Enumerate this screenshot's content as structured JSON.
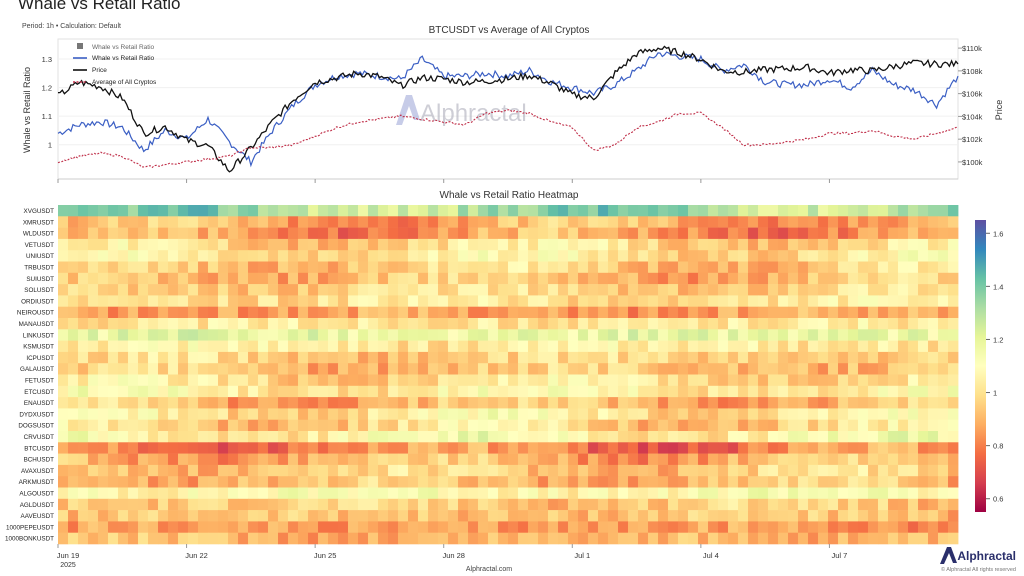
{
  "page": {
    "title": "Whale vs Retail Ratio",
    "subtitle": "Period: 1h • Calculation: Default",
    "watermark": "Alphractal",
    "footer_site": "Alphractal.com",
    "footer_brand": "Alphractal",
    "footer_rights": "© Alphractal All rights reserved"
  },
  "colors": {
    "whale": "#3b5fc4",
    "price": "#111111",
    "average": "#c0304a",
    "legend_box": "#777777"
  },
  "chart_data": [
    {
      "type": "line",
      "title": "BTCUSDT vs Average of All Cryptos",
      "ylabel": "Whale vs Retail Ratio",
      "y2label": "Price",
      "ylim": [
        0.88,
        1.37
      ],
      "y2lim": [
        98500,
        110800
      ],
      "yticks": [
        "1",
        "1.1",
        "1.2",
        "1.3"
      ],
      "y2ticks": [
        "$100k",
        "$102k",
        "$104k",
        "$106k",
        "$108k",
        "$110k"
      ],
      "legend": {
        "position": "top-left",
        "entries": [
          "Whale vs Retail Ratio",
          "Whale vs Retail Ratio",
          "Price",
          "Average of All Cryptos"
        ]
      },
      "x": [
        0,
        0.5,
        1,
        1.5,
        2,
        2.5,
        3,
        3.5,
        4,
        4.5,
        5,
        5.5,
        6,
        6.5,
        7,
        7.5,
        8,
        8.5,
        9,
        9.5,
        10,
        10.5,
        11,
        11.5,
        12,
        12.5,
        13,
        13.5,
        14,
        14.5,
        15,
        15.5,
        16,
        16.5,
        17,
        17.5,
        18,
        18.5,
        19,
        19.5,
        20,
        20.5,
        21
      ],
      "series": [
        {
          "name": "Whale vs Retail Ratio",
          "axis": "left",
          "values": [
            1.04,
            1.07,
            1.08,
            1.06,
            0.98,
            1.05,
            1.02,
            1.09,
            1.01,
            0.94,
            1.05,
            1.14,
            1.21,
            1.24,
            1.25,
            1.24,
            1.23,
            1.3,
            1.24,
            1.24,
            1.25,
            1.24,
            1.26,
            1.22,
            1.2,
            1.18,
            1.21,
            1.26,
            1.32,
            1.31,
            1.3,
            1.26,
            1.28,
            1.22,
            1.21,
            1.21,
            1.23,
            1.2,
            1.26,
            1.21,
            1.19,
            1.14,
            1.24
          ]
        },
        {
          "name": "Price",
          "axis": "right",
          "values": [
            105800,
            107000,
            106600,
            105600,
            102500,
            103100,
            101900,
            101400,
            99200,
            101200,
            103500,
            105500,
            107000,
            107400,
            107800,
            107500,
            106700,
            107400,
            107300,
            107000,
            107100,
            107300,
            107600,
            106900,
            105900,
            105600,
            107800,
            109500,
            110000,
            109600,
            109000,
            108000,
            107900,
            108100,
            108200,
            108300,
            107800,
            108100,
            108000,
            108400,
            108700,
            108600,
            108600
          ]
        },
        {
          "name": "Average of All Cryptos",
          "axis": "left",
          "values": [
            0.94,
            0.96,
            0.97,
            0.96,
            0.92,
            0.93,
            0.94,
            0.95,
            0.96,
            0.99,
            0.99,
            1.0,
            1.03,
            1.06,
            1.08,
            1.09,
            1.1,
            1.09,
            1.08,
            1.07,
            1.11,
            1.12,
            1.11,
            1.08,
            1.06,
            0.98,
            1.0,
            1.06,
            1.08,
            1.11,
            1.11,
            1.06,
            1.0,
            1.0,
            1.01,
            1.02,
            1.04,
            1.04,
            1.05,
            1.03,
            1.02,
            1.04,
            1.06
          ]
        }
      ]
    },
    {
      "type": "heatmap",
      "title": "Whale vs Retail Ratio Heatmap",
      "rows": [
        "XVGUSDT",
        "XMRUSDT",
        "WLDUSDT",
        "VETUSDT",
        "UNIUSDT",
        "TRBUSDT",
        "SUIUSDT",
        "SOLUSDT",
        "ORDIUSDT",
        "NEIROUSDT",
        "MANAUSDT",
        "LINKUSDT",
        "KSMUSDT",
        "ICPUSDT",
        "GALAUSDT",
        "FETUSDT",
        "ETCUSDT",
        "ENAUSDT",
        "DYDXUSDT",
        "DOGSUSDT",
        "CRVUSDT",
        "BTCUSDT",
        "BCHUSDT",
        "AVAXUSDT",
        "ARKMUSDT",
        "ALGOUSDT",
        "AGLDUSDT",
        "AAVEUSDT",
        "1000PEPEUSDT",
        "1000BONKUSDT"
      ],
      "row_means": [
        1.32,
        0.88,
        0.85,
        0.98,
        1.02,
        0.95,
        0.92,
        0.97,
        1.0,
        0.86,
        1.02,
        1.18,
        1.03,
        0.96,
        0.93,
        1.0,
        1.05,
        0.9,
        1.03,
        0.97,
        1.08,
        0.8,
        0.9,
        0.94,
        0.92,
        1.1,
        0.95,
        0.93,
        0.85,
        0.9
      ],
      "colorbar": {
        "range": [
          0.55,
          1.65
        ],
        "ticks": [
          "0.6",
          "0.8",
          "1",
          "1.2",
          "1.4",
          "1.6"
        ],
        "colors": [
          "#9e0142",
          "#d53e4f",
          "#f46d43",
          "#fdae61",
          "#fee08b",
          "#ffffbf",
          "#e6f598",
          "#abdda4",
          "#66c2a5",
          "#3288bd",
          "#5e4fa2"
        ]
      }
    }
  ],
  "x_axis": {
    "ticks": [
      {
        "day": 0,
        "label": "Jun 19"
      },
      {
        "day": 3,
        "label": "Jun 22"
      },
      {
        "day": 6,
        "label": "Jun 25"
      },
      {
        "day": 9,
        "label": "Jun 28"
      },
      {
        "day": 12,
        "label": "Jul 1"
      },
      {
        "day": 15,
        "label": "Jul 4"
      },
      {
        "day": 18,
        "label": "Jul 7"
      }
    ],
    "year": "2025",
    "range": [
      0,
      21
    ]
  }
}
